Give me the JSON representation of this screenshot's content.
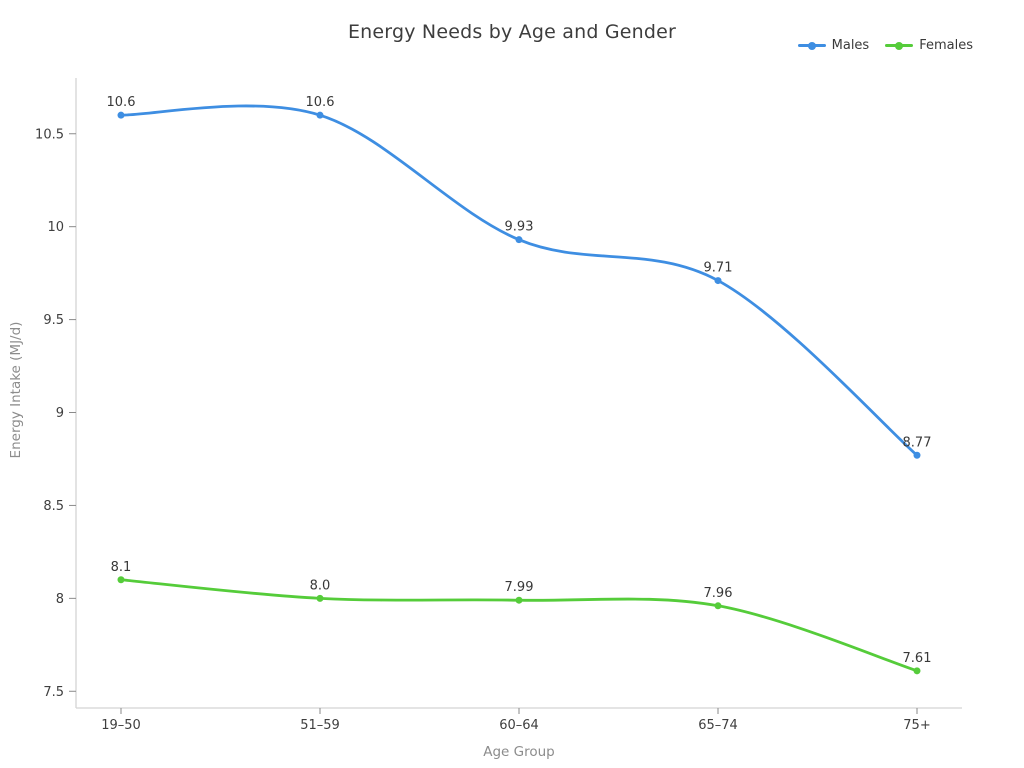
{
  "title": "Energy Needs by Age and Gender",
  "colors": {
    "background": "#ffffff",
    "males": "#3e8ee2",
    "females": "#55cc3a",
    "axis_line": "#d4d4d4",
    "tick_mark": "#8a8a8a",
    "tick_label": "#3f3f3f",
    "axis_title": "#8c8c8c",
    "title": "#3d3d3d",
    "value_label": "#383838"
  },
  "chart_data": {
    "type": "line",
    "line_shape": "spline",
    "markers": true,
    "grid": false,
    "title": "Energy Needs by Age and Gender",
    "xlabel": "Age Group",
    "ylabel": "Energy Intake (MJ/d)",
    "categories": [
      "19–50",
      "51–59",
      "60–64",
      "65–74",
      "75+"
    ],
    "series": [
      {
        "name": "Males",
        "color": "#3e8ee2",
        "values": [
          10.6,
          10.6,
          9.93,
          9.71,
          8.77
        ],
        "labels": [
          "10.6",
          "10.6",
          "9.93",
          "9.71",
          "8.77"
        ]
      },
      {
        "name": "Females",
        "color": "#55cc3a",
        "values": [
          8.1,
          8.0,
          7.99,
          7.96,
          7.61
        ],
        "labels": [
          "8.1",
          "8.0",
          "7.99",
          "7.96",
          "7.61"
        ]
      }
    ],
    "yticks": [
      7.5,
      8,
      8.5,
      9,
      9.5,
      10,
      10.5
    ],
    "ytick_labels": [
      "7.5",
      "8",
      "8.5",
      "9",
      "9.5",
      "10",
      "10.5"
    ],
    "ylim": [
      7.41,
      10.8
    ],
    "legend_position": "top-right"
  }
}
